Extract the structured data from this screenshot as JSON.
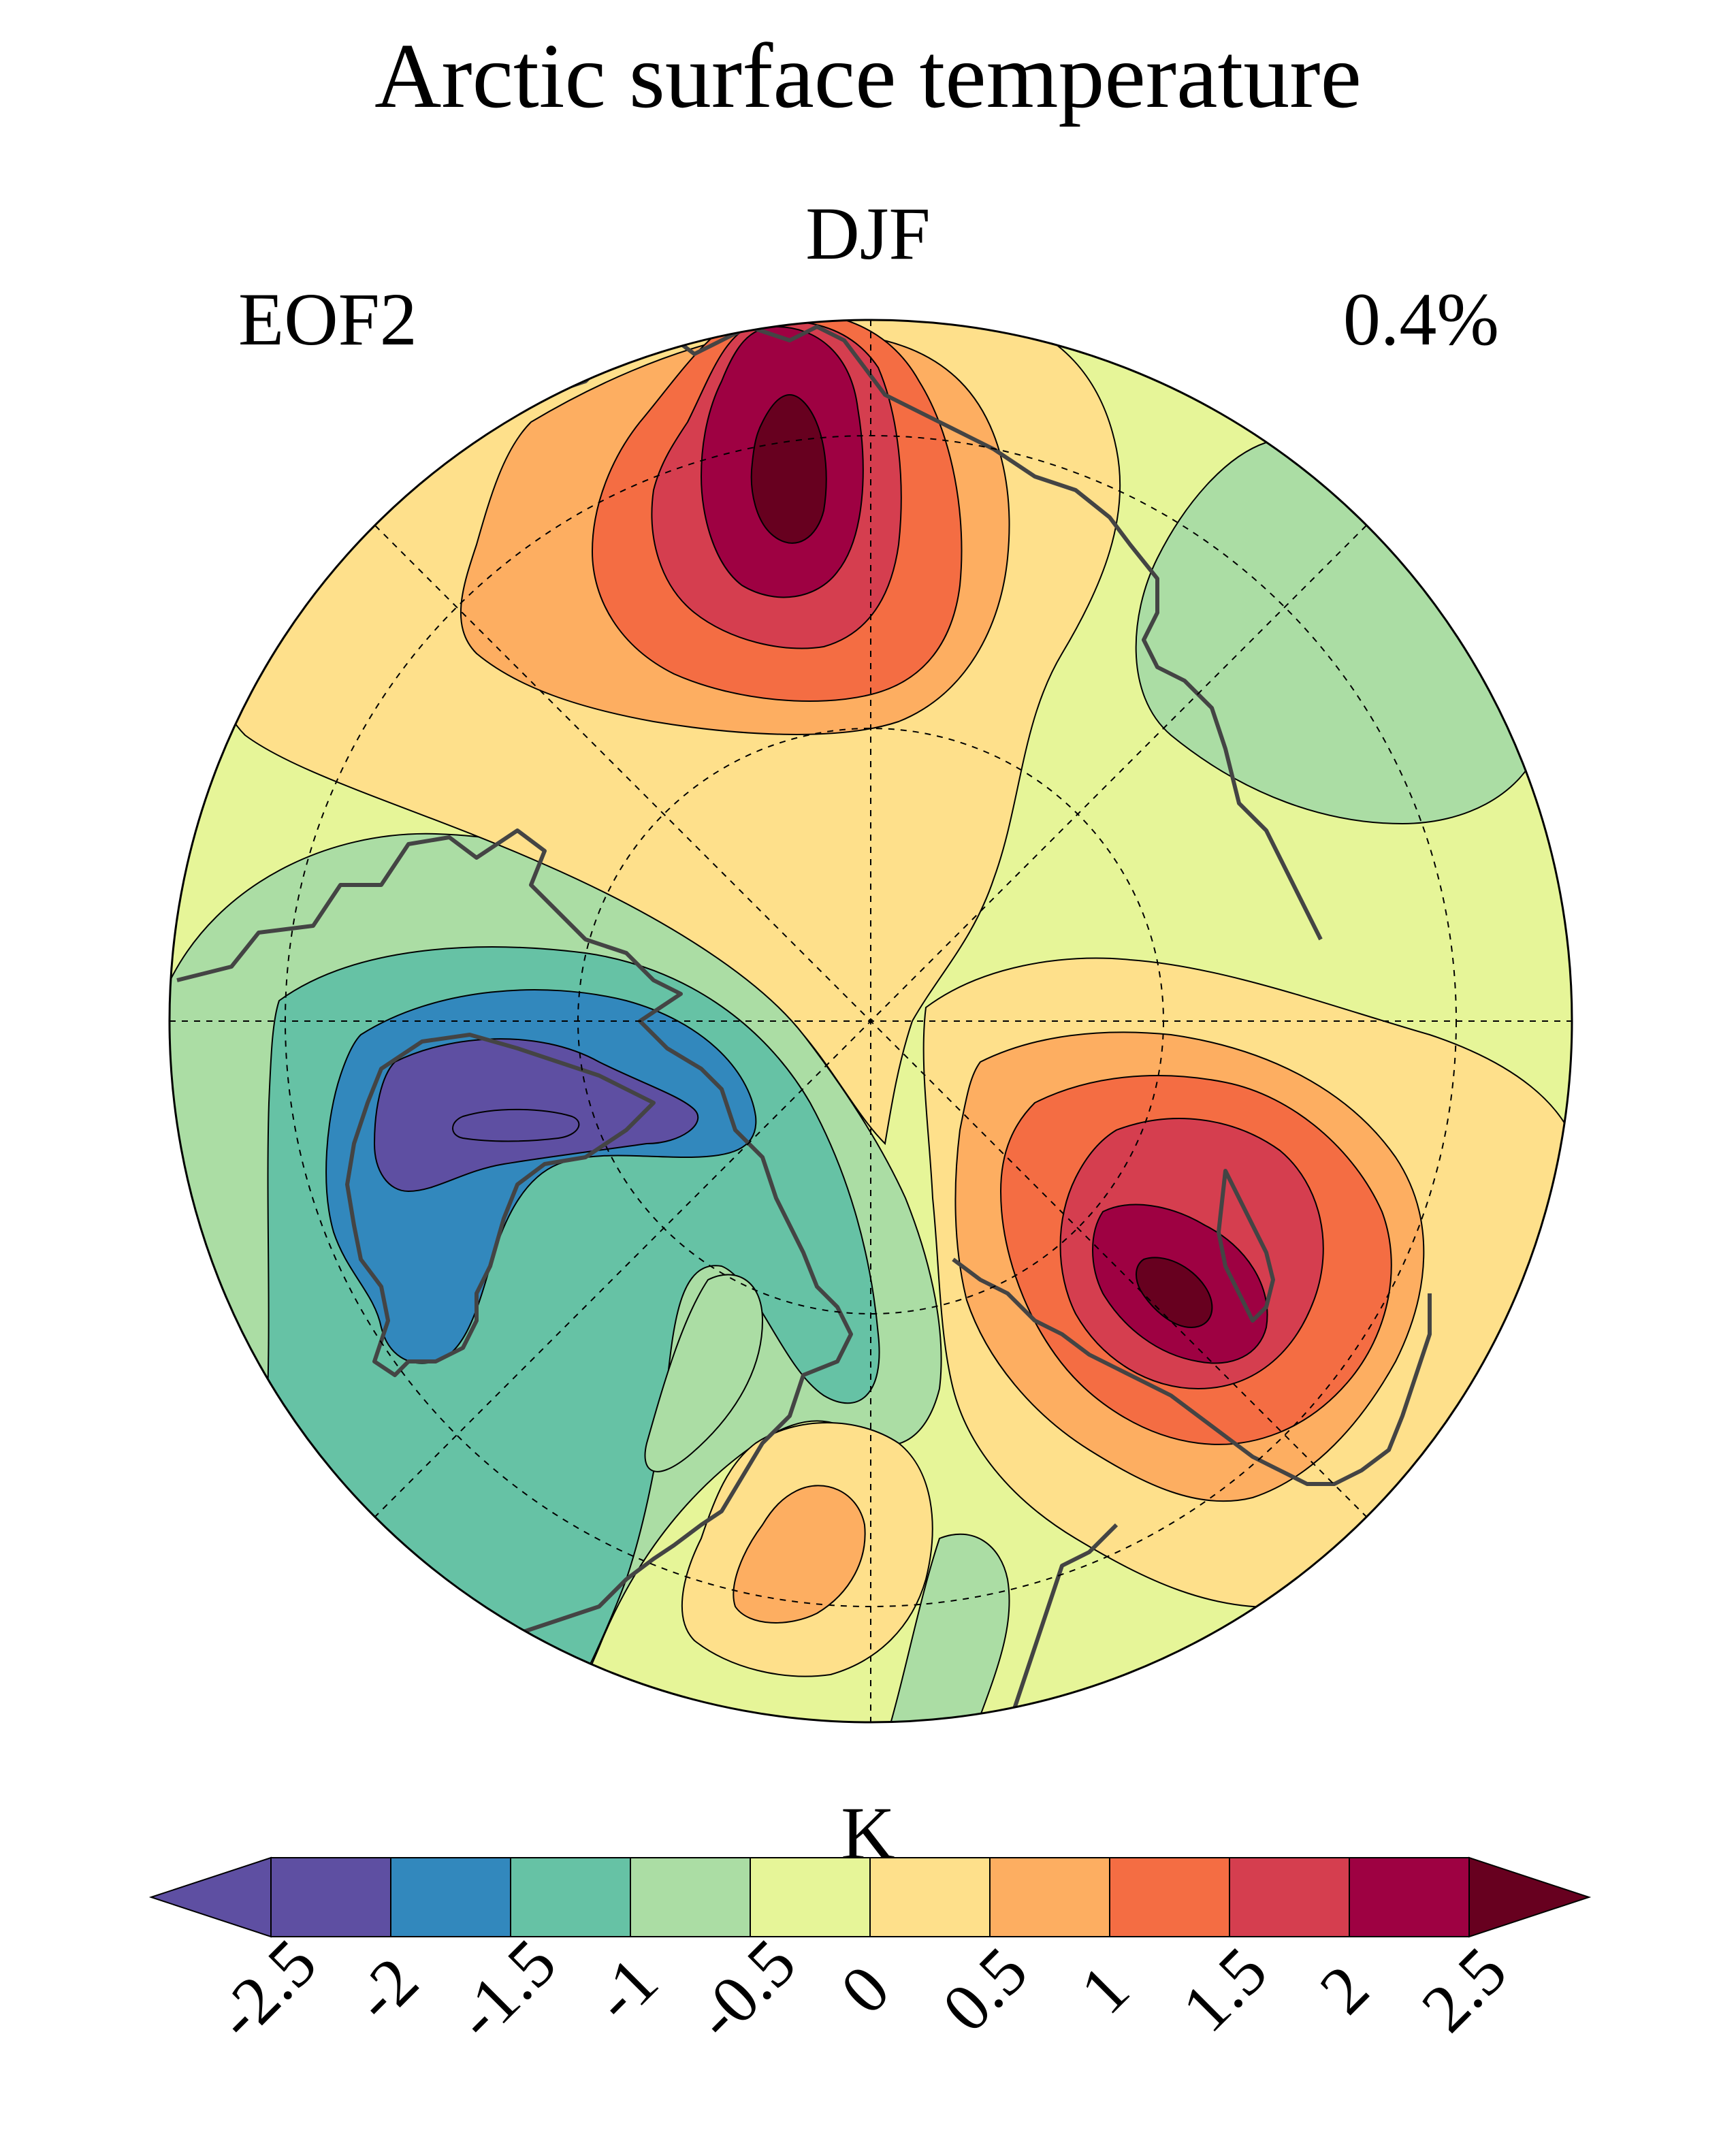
{
  "title": "Arctic surface temperature",
  "season": "DJF",
  "mode": "EOF2",
  "variance_explained": "0.4%",
  "colorbar": {
    "units": "K",
    "levels": [
      -2.5,
      -2,
      -1.5,
      -1,
      -0.5,
      0,
      0.5,
      1,
      1.5,
      2,
      2.5
    ],
    "tick_labels": [
      "-2.5",
      "-2",
      "-1.5",
      "-1",
      "-0.5",
      "0",
      "0.5",
      "1",
      "1.5",
      "2",
      "2.5"
    ],
    "colors": [
      "#5e4fa2",
      "#3288bd",
      "#66c2a5",
      "#abdda4",
      "#e6f598",
      "#fee08b",
      "#fdae61",
      "#f46d43",
      "#d53e4f",
      "#9e0142"
    ],
    "under_color": "#5e4fa2",
    "over_color": "#67001f",
    "extend": "both"
  },
  "map": {
    "projection": "north polar stereographic",
    "graticule": "dashed"
  }
}
